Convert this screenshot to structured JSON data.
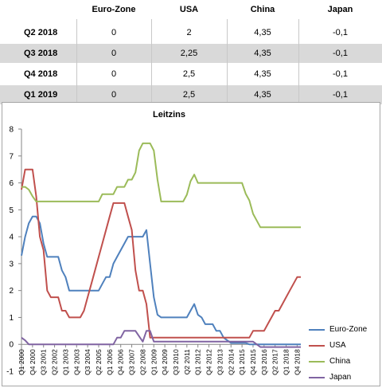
{
  "table": {
    "headers": [
      "",
      "Euro-Zone",
      "USA",
      "China",
      "Japan"
    ],
    "rows": [
      {
        "label": "Q2 2018",
        "values": [
          "0",
          "2",
          "4,35",
          "-0,1"
        ]
      },
      {
        "label": "Q3 2018",
        "values": [
          "0",
          "2,25",
          "4,35",
          "-0,1"
        ]
      },
      {
        "label": "Q4 2018",
        "values": [
          "0",
          "2,5",
          "4,35",
          "-0,1"
        ]
      },
      {
        "label": "Q1 2019",
        "values": [
          "0",
          "2,5",
          "4,35",
          "-0,1"
        ]
      }
    ]
  },
  "chart_data": {
    "type": "line",
    "title": "Leitzins",
    "ylim": [
      -1,
      8
    ],
    "yticks": [
      "-1",
      "0",
      "1",
      "2",
      "3",
      "4",
      "5",
      "6",
      "7",
      "8"
    ],
    "xlim": [
      0,
      76
    ],
    "xtick_labels": [
      "Q1 2000",
      "Q4 2000",
      "Q3 2001",
      "Q2 2002",
      "Q1 2003",
      "Q4 2003",
      "Q3 2004",
      "Q2 2005",
      "Q1 2006",
      "Q4 2006",
      "Q3 2007",
      "Q2 2008",
      "Q1 2009",
      "Q4 2009",
      "Q3 2010",
      "Q2 2011",
      "Q1 2012",
      "Q4 2012",
      "Q3 2013",
      "Q2 2014",
      "Q1 2015",
      "Q4 2015",
      "Q3 2016",
      "Q2 2017",
      "Q1 2018",
      "Q4 2018"
    ],
    "grid": false,
    "legend_position": "right",
    "series": [
      {
        "name": "Euro-Zone",
        "color": "#4f81bd",
        "points": [
          [
            0,
            3.3
          ],
          [
            1,
            4
          ],
          [
            2,
            4.5
          ],
          [
            3,
            4.75
          ],
          [
            4,
            4.75
          ],
          [
            5,
            4.5
          ],
          [
            6,
            3.75
          ],
          [
            7,
            3.25
          ],
          [
            8,
            3.25
          ],
          [
            9,
            3.25
          ],
          [
            10,
            3.25
          ],
          [
            11,
            2.75
          ],
          [
            12,
            2.5
          ],
          [
            13,
            2
          ],
          [
            14,
            2
          ],
          [
            15,
            2
          ],
          [
            16,
            2
          ],
          [
            17,
            2
          ],
          [
            18,
            2
          ],
          [
            19,
            2
          ],
          [
            20,
            2
          ],
          [
            21,
            2
          ],
          [
            22,
            2.25
          ],
          [
            23,
            2.5
          ],
          [
            24,
            2.5
          ],
          [
            25,
            3
          ],
          [
            26,
            3.25
          ],
          [
            27,
            3.5
          ],
          [
            28,
            3.75
          ],
          [
            29,
            4
          ],
          [
            30,
            4
          ],
          [
            31,
            4
          ],
          [
            32,
            4
          ],
          [
            33,
            4
          ],
          [
            34,
            4.25
          ],
          [
            35,
            3
          ],
          [
            36,
            1.75
          ],
          [
            37,
            1.1
          ],
          [
            38,
            1
          ],
          [
            39,
            1
          ],
          [
            40,
            1
          ],
          [
            41,
            1
          ],
          [
            42,
            1
          ],
          [
            43,
            1
          ],
          [
            44,
            1
          ],
          [
            45,
            1
          ],
          [
            46,
            1.25
          ],
          [
            47,
            1.5
          ],
          [
            48,
            1.1
          ],
          [
            49,
            1
          ],
          [
            50,
            0.75
          ],
          [
            51,
            0.75
          ],
          [
            52,
            0.75
          ],
          [
            53,
            0.5
          ],
          [
            54,
            0.5
          ],
          [
            55,
            0.25
          ],
          [
            56,
            0.15
          ],
          [
            57,
            0.05
          ],
          [
            58,
            0.05
          ],
          [
            59,
            0.05
          ],
          [
            60,
            0.05
          ],
          [
            61,
            0.05
          ],
          [
            62,
            0
          ],
          [
            63,
            0
          ],
          [
            64,
            0
          ],
          [
            65,
            0
          ],
          [
            66,
            0
          ],
          [
            67,
            0
          ],
          [
            68,
            0
          ],
          [
            69,
            0
          ],
          [
            70,
            0
          ],
          [
            71,
            0
          ],
          [
            72,
            0
          ],
          [
            73,
            0
          ],
          [
            74,
            0
          ],
          [
            75,
            0
          ],
          [
            76,
            0
          ]
        ]
      },
      {
        "name": "USA",
        "color": "#c0504d",
        "points": [
          [
            0,
            5.75
          ],
          [
            1,
            6.5
          ],
          [
            2,
            6.5
          ],
          [
            3,
            6.5
          ],
          [
            4,
            5.5
          ],
          [
            5,
            4
          ],
          [
            6,
            3.5
          ],
          [
            7,
            2
          ],
          [
            8,
            1.75
          ],
          [
            9,
            1.75
          ],
          [
            10,
            1.75
          ],
          [
            11,
            1.25
          ],
          [
            12,
            1.25
          ],
          [
            13,
            1
          ],
          [
            14,
            1
          ],
          [
            15,
            1
          ],
          [
            16,
            1
          ],
          [
            17,
            1.25
          ],
          [
            18,
            1.75
          ],
          [
            19,
            2.25
          ],
          [
            20,
            2.75
          ],
          [
            21,
            3.25
          ],
          [
            22,
            3.75
          ],
          [
            23,
            4.25
          ],
          [
            24,
            4.75
          ],
          [
            25,
            5.25
          ],
          [
            26,
            5.25
          ],
          [
            27,
            5.25
          ],
          [
            28,
            5.25
          ],
          [
            29,
            4.75
          ],
          [
            30,
            4.25
          ],
          [
            31,
            2.75
          ],
          [
            32,
            2
          ],
          [
            33,
            2
          ],
          [
            34,
            1.5
          ],
          [
            35,
            0.25
          ],
          [
            36,
            0.25
          ],
          [
            37,
            0.25
          ],
          [
            38,
            0.25
          ],
          [
            39,
            0.25
          ],
          [
            40,
            0.25
          ],
          [
            41,
            0.25
          ],
          [
            42,
            0.25
          ],
          [
            43,
            0.25
          ],
          [
            44,
            0.25
          ],
          [
            45,
            0.25
          ],
          [
            46,
            0.25
          ],
          [
            47,
            0.25
          ],
          [
            48,
            0.25
          ],
          [
            49,
            0.25
          ],
          [
            50,
            0.25
          ],
          [
            51,
            0.25
          ],
          [
            52,
            0.25
          ],
          [
            53,
            0.25
          ],
          [
            54,
            0.25
          ],
          [
            55,
            0.25
          ],
          [
            56,
            0.25
          ],
          [
            57,
            0.25
          ],
          [
            58,
            0.25
          ],
          [
            59,
            0.25
          ],
          [
            60,
            0.25
          ],
          [
            61,
            0.25
          ],
          [
            62,
            0.25
          ],
          [
            63,
            0.5
          ],
          [
            64,
            0.5
          ],
          [
            65,
            0.5
          ],
          [
            66,
            0.5
          ],
          [
            67,
            0.75
          ],
          [
            68,
            1
          ],
          [
            69,
            1.25
          ],
          [
            70,
            1.25
          ],
          [
            71,
            1.5
          ],
          [
            72,
            1.75
          ],
          [
            73,
            2
          ],
          [
            74,
            2.25
          ],
          [
            75,
            2.5
          ],
          [
            76,
            2.5
          ]
        ]
      },
      {
        "name": "China",
        "color": "#9bbb59",
        "points": [
          [
            0,
            5.85
          ],
          [
            1,
            5.85
          ],
          [
            2,
            5.75
          ],
          [
            3,
            5.5
          ],
          [
            4,
            5.31
          ],
          [
            5,
            5.31
          ],
          [
            6,
            5.31
          ],
          [
            7,
            5.31
          ],
          [
            8,
            5.31
          ],
          [
            9,
            5.31
          ],
          [
            10,
            5.31
          ],
          [
            11,
            5.31
          ],
          [
            12,
            5.31
          ],
          [
            13,
            5.31
          ],
          [
            14,
            5.31
          ],
          [
            15,
            5.31
          ],
          [
            16,
            5.31
          ],
          [
            17,
            5.31
          ],
          [
            18,
            5.31
          ],
          [
            19,
            5.31
          ],
          [
            20,
            5.31
          ],
          [
            21,
            5.31
          ],
          [
            22,
            5.58
          ],
          [
            23,
            5.58
          ],
          [
            24,
            5.58
          ],
          [
            25,
            5.58
          ],
          [
            26,
            5.85
          ],
          [
            27,
            5.85
          ],
          [
            28,
            5.85
          ],
          [
            29,
            6.12
          ],
          [
            30,
            6.12
          ],
          [
            31,
            6.39
          ],
          [
            32,
            7.2
          ],
          [
            33,
            7.47
          ],
          [
            34,
            7.47
          ],
          [
            35,
            7.47
          ],
          [
            36,
            7.2
          ],
          [
            37,
            6.12
          ],
          [
            38,
            5.31
          ],
          [
            39,
            5.31
          ],
          [
            40,
            5.31
          ],
          [
            41,
            5.31
          ],
          [
            42,
            5.31
          ],
          [
            43,
            5.31
          ],
          [
            44,
            5.31
          ],
          [
            45,
            5.56
          ],
          [
            46,
            6.06
          ],
          [
            47,
            6.31
          ],
          [
            48,
            6
          ],
          [
            49,
            6
          ],
          [
            50,
            6
          ],
          [
            51,
            6
          ],
          [
            52,
            6
          ],
          [
            53,
            6
          ],
          [
            54,
            6
          ],
          [
            55,
            6
          ],
          [
            56,
            6
          ],
          [
            57,
            6
          ],
          [
            58,
            6
          ],
          [
            59,
            6
          ],
          [
            60,
            6
          ],
          [
            61,
            5.6
          ],
          [
            62,
            5.35
          ],
          [
            63,
            4.85
          ],
          [
            64,
            4.6
          ],
          [
            65,
            4.35
          ],
          [
            66,
            4.35
          ],
          [
            67,
            4.35
          ],
          [
            68,
            4.35
          ],
          [
            69,
            4.35
          ],
          [
            70,
            4.35
          ],
          [
            71,
            4.35
          ],
          [
            72,
            4.35
          ],
          [
            73,
            4.35
          ],
          [
            74,
            4.35
          ],
          [
            75,
            4.35
          ],
          [
            76,
            4.35
          ]
        ]
      },
      {
        "name": "Japan",
        "color": "#8064a2",
        "points": [
          [
            0,
            0.25
          ],
          [
            1,
            0.15
          ],
          [
            2,
            0
          ],
          [
            3,
            0
          ],
          [
            4,
            0
          ],
          [
            5,
            0
          ],
          [
            6,
            0
          ],
          [
            7,
            0
          ],
          [
            8,
            0
          ],
          [
            9,
            0
          ],
          [
            10,
            0
          ],
          [
            11,
            0
          ],
          [
            12,
            0
          ],
          [
            13,
            0
          ],
          [
            14,
            0
          ],
          [
            15,
            0
          ],
          [
            16,
            0
          ],
          [
            17,
            0
          ],
          [
            18,
            0
          ],
          [
            19,
            0
          ],
          [
            20,
            0
          ],
          [
            21,
            0
          ],
          [
            22,
            0
          ],
          [
            23,
            0
          ],
          [
            24,
            0
          ],
          [
            25,
            0
          ],
          [
            26,
            0.25
          ],
          [
            27,
            0.25
          ],
          [
            28,
            0.5
          ],
          [
            29,
            0.5
          ],
          [
            30,
            0.5
          ],
          [
            31,
            0.5
          ],
          [
            32,
            0.3
          ],
          [
            33,
            0.1
          ],
          [
            34,
            0.5
          ],
          [
            35,
            0.5
          ],
          [
            36,
            0.1
          ],
          [
            37,
            0.1
          ],
          [
            38,
            0.1
          ],
          [
            39,
            0.1
          ],
          [
            40,
            0.1
          ],
          [
            41,
            0.1
          ],
          [
            42,
            0.1
          ],
          [
            43,
            0.1
          ],
          [
            44,
            0.1
          ],
          [
            45,
            0.1
          ],
          [
            46,
            0.1
          ],
          [
            47,
            0.1
          ],
          [
            48,
            0.1
          ],
          [
            49,
            0.1
          ],
          [
            50,
            0.1
          ],
          [
            51,
            0.1
          ],
          [
            52,
            0.1
          ],
          [
            53,
            0.1
          ],
          [
            54,
            0.1
          ],
          [
            55,
            0.1
          ],
          [
            56,
            0.1
          ],
          [
            57,
            0.1
          ],
          [
            58,
            0.1
          ],
          [
            59,
            0.1
          ],
          [
            60,
            0.1
          ],
          [
            61,
            0.1
          ],
          [
            62,
            0.1
          ],
          [
            63,
            0.1
          ],
          [
            64,
            0
          ],
          [
            65,
            -0.1
          ],
          [
            66,
            -0.1
          ],
          [
            67,
            -0.1
          ],
          [
            68,
            -0.1
          ],
          [
            69,
            -0.1
          ],
          [
            70,
            -0.1
          ],
          [
            71,
            -0.1
          ],
          [
            72,
            -0.1
          ],
          [
            73,
            -0.1
          ],
          [
            74,
            -0.1
          ],
          [
            75,
            -0.1
          ],
          [
            76,
            -0.1
          ]
        ]
      }
    ]
  }
}
